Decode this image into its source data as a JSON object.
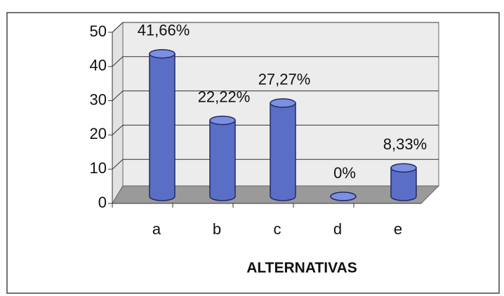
{
  "chart_data": {
    "type": "bar",
    "x_label": "ALTERNATIVAS",
    "categories": [
      "a",
      "b",
      "c",
      "d",
      "e"
    ],
    "values": [
      41.66,
      22.22,
      27.27,
      0,
      8.33
    ],
    "value_labels": [
      "41,66%",
      "22,22%",
      "27,27%",
      "0%",
      "8,33%"
    ],
    "color": "#5a6ec6",
    "ylim": [
      0,
      50
    ],
    "yticks": [
      0,
      10,
      20,
      30,
      40,
      50
    ],
    "grid": true
  }
}
